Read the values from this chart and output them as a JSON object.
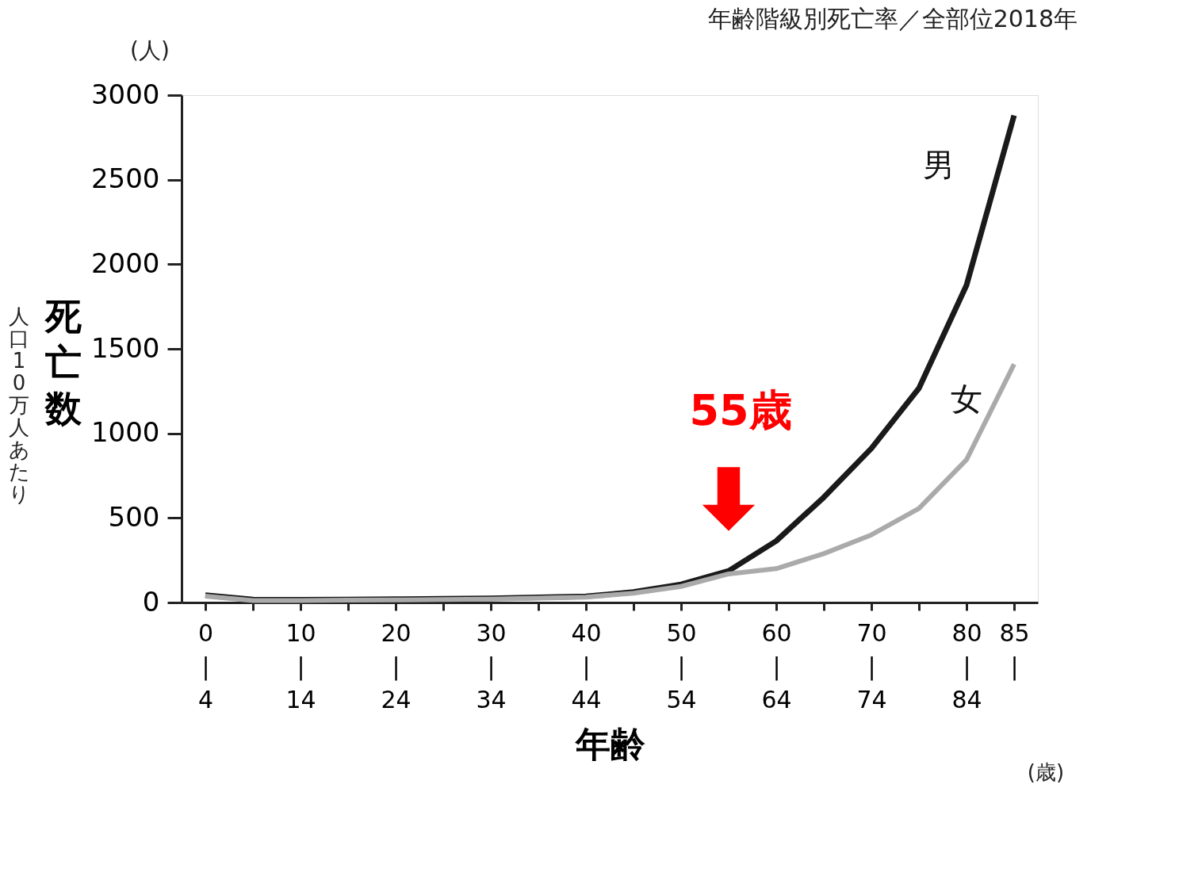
{
  "chart_data": {
    "type": "line",
    "title": "年齢階級別死亡率／全部位2018年",
    "xlabel": "年齢",
    "ylabel": "死亡数",
    "categories": [
      "0\n|\n4",
      null,
      "10\n|\n14",
      null,
      "20\n|\n24",
      null,
      "30\n|\n34",
      null,
      "40\n|\n44",
      null,
      "50\n|\n54",
      null,
      "60\n|\n64",
      null,
      "70\n|\n74",
      null,
      "80\n|\n84",
      "85\n|"
    ],
    "series": [
      {
        "name": "男",
        "color": "#1a1a1a",
        "values": [
          44,
          18,
          16,
          18,
          20,
          22,
          25,
          30,
          36,
          62,
          107,
          187,
          364,
          622,
          911,
          1267,
          1876,
          2880
        ]
      },
      {
        "name": "女",
        "color": "#aaaaaa",
        "values": [
          38,
          12,
          12,
          14,
          15,
          17,
          20,
          26,
          32,
          55,
          95,
          169,
          200,
          289,
          400,
          556,
          844,
          1409
        ]
      }
    ],
    "ylim": [
      0,
      3000
    ],
    "yticks": [
      0,
      500,
      1000,
      1500,
      2000,
      2500,
      3000
    ],
    "grid": false,
    "legend": false,
    "marker": "none",
    "line_style": "solid",
    "annotations": [
      "(人)",
      "人口10万人あたり",
      "(歳)",
      "55歳"
    ]
  }
}
